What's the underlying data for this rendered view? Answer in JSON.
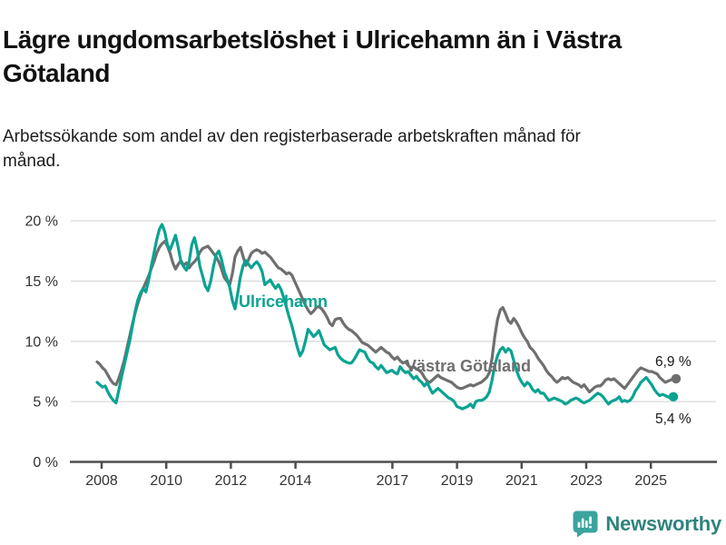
{
  "header": {
    "title": "Lägre ungdomsarbetslöshet i Ulricehamn än i Västra Götaland",
    "subtitle": "Arbetssökande som andel av den registerbaserade arbetskraften månad för månad."
  },
  "chart_data": {
    "type": "line",
    "unit": "%",
    "frequency": "monthly",
    "start": "2008-01",
    "end": "2025-10",
    "grid": true,
    "legend": "inline-labels",
    "ylim": [
      0,
      20
    ],
    "y_ticks": [
      {
        "value": 0,
        "label": "0 %"
      },
      {
        "value": 5,
        "label": "5 %"
      },
      {
        "value": 10,
        "label": "10 %"
      },
      {
        "value": 15,
        "label": "15 %"
      },
      {
        "value": 20,
        "label": "20 %"
      }
    ],
    "x_ticks": [
      {
        "year": 2008,
        "label": "2008"
      },
      {
        "year": 2010,
        "label": "2010"
      },
      {
        "year": 2012,
        "label": "2012"
      },
      {
        "year": 2014,
        "label": "2014"
      },
      {
        "year": 2017,
        "label": "2017"
      },
      {
        "year": 2019,
        "label": "2019"
      },
      {
        "year": 2021,
        "label": "2021"
      },
      {
        "year": 2023,
        "label": "2023"
      },
      {
        "year": 2025,
        "label": "2025"
      }
    ],
    "series": [
      {
        "name": "Västra Götaland",
        "label_text": "Västra Götaland",
        "color": "#6f6f6f",
        "end_value": 6.9,
        "end_value_label": "6,9 %",
        "values": [
          8.3,
          8.1,
          7.8,
          7.6,
          7.2,
          6.8,
          6.5,
          6.4,
          6.9,
          7.6,
          8.4,
          9.4,
          10.4,
          11.4,
          12.3,
          13.1,
          13.8,
          14.4,
          14.9,
          15.4,
          16.0,
          16.6,
          17.3,
          17.8,
          18.1,
          18.3,
          17.9,
          17.3,
          16.5,
          16.0,
          16.4,
          16.7,
          16.3,
          16.5,
          16.1,
          16.4,
          16.6,
          16.9,
          17.4,
          17.7,
          17.8,
          17.9,
          17.6,
          17.3,
          17.0,
          16.6,
          16.0,
          15.3,
          15.0,
          14.7,
          15.6,
          17.0,
          17.5,
          17.8,
          17.0,
          16.3,
          16.8,
          17.3,
          17.5,
          17.6,
          17.5,
          17.3,
          17.4,
          17.2,
          17.0,
          16.7,
          16.4,
          16.1,
          16.0,
          15.8,
          15.6,
          15.7,
          15.5,
          15.0,
          14.5,
          14.0,
          13.5,
          13.0,
          12.6,
          12.3,
          12.5,
          12.8,
          12.9,
          12.7,
          12.4,
          12.0,
          11.5,
          11.3,
          11.8,
          11.9,
          11.9,
          11.5,
          11.2,
          11.0,
          10.9,
          10.7,
          10.5,
          10.2,
          9.9,
          9.8,
          9.7,
          9.5,
          9.3,
          9.1,
          9.3,
          9.5,
          9.3,
          9.1,
          9.0,
          8.7,
          8.5,
          8.7,
          8.4,
          8.2,
          8.3,
          8.0,
          7.8,
          7.9,
          7.7,
          7.6,
          7.4,
          7.0,
          6.7,
          6.6,
          6.8,
          7.0,
          7.2,
          7.0,
          6.9,
          6.8,
          6.7,
          6.6,
          6.4,
          6.2,
          6.1,
          6.1,
          6.2,
          6.3,
          6.4,
          6.3,
          6.4,
          6.5,
          6.6,
          6.8,
          7.0,
          7.4,
          8.6,
          10.4,
          11.8,
          12.6,
          12.8,
          12.3,
          11.7,
          11.5,
          11.9,
          11.6,
          11.2,
          10.7,
          10.3,
          10.0,
          9.5,
          9.3,
          9.0,
          8.6,
          8.3,
          8.0,
          7.6,
          7.3,
          7.1,
          6.8,
          6.6,
          6.8,
          7.0,
          6.9,
          7.0,
          6.8,
          6.6,
          6.5,
          6.4,
          6.2,
          6.4,
          6.1,
          5.8,
          6.0,
          6.2,
          6.3,
          6.3,
          6.5,
          6.8,
          6.9,
          6.8,
          6.9,
          6.7,
          6.5,
          6.3,
          6.1,
          6.4,
          6.7,
          7.0,
          7.3,
          7.6,
          7.8,
          7.7,
          7.6,
          7.5,
          7.5,
          7.4,
          7.3,
          7.0,
          6.8,
          6.6,
          6.7,
          6.8,
          6.9
        ]
      },
      {
        "name": "Ulricehamn",
        "label_text": "Ulricehamn",
        "color": "#0aa392",
        "end_value": 5.4,
        "end_value_label": "5,4 %",
        "values": [
          6.6,
          6.4,
          6.2,
          6.3,
          5.8,
          5.4,
          5.1,
          4.9,
          5.9,
          7.0,
          8.0,
          9.0,
          10.0,
          11.2,
          12.4,
          13.4,
          14.0,
          14.4,
          14.1,
          15.0,
          16.2,
          17.3,
          18.4,
          19.3,
          19.7,
          19.1,
          18.0,
          17.6,
          18.2,
          18.8,
          17.8,
          16.6,
          16.2,
          15.9,
          16.6,
          18.0,
          18.6,
          17.6,
          16.2,
          15.4,
          14.6,
          14.2,
          15.0,
          16.2,
          17.2,
          17.5,
          16.8,
          15.8,
          15.2,
          14.5,
          13.4,
          12.7,
          14.0,
          15.4,
          16.3,
          16.7,
          16.4,
          16.1,
          16.4,
          16.6,
          16.3,
          15.8,
          14.7,
          14.9,
          15.1,
          14.7,
          14.4,
          14.7,
          14.3,
          13.6,
          12.8,
          12.0,
          11.3,
          10.4,
          9.5,
          8.8,
          9.2,
          10.0,
          11.0,
          10.7,
          10.4,
          10.6,
          10.9,
          10.3,
          9.7,
          9.5,
          9.3,
          9.4,
          9.5,
          8.9,
          8.6,
          8.4,
          8.3,
          8.2,
          8.2,
          8.5,
          8.9,
          9.3,
          9.2,
          9.1,
          8.6,
          8.3,
          8.2,
          7.9,
          7.7,
          8.0,
          7.7,
          7.4,
          7.5,
          7.6,
          7.4,
          7.3,
          7.9,
          7.6,
          7.4,
          7.5,
          7.2,
          6.9,
          7.1,
          6.8,
          6.6,
          6.3,
          6.6,
          6.1,
          5.7,
          5.9,
          6.1,
          5.9,
          5.7,
          5.5,
          5.3,
          5.2,
          5.0,
          4.6,
          4.5,
          4.4,
          4.5,
          4.6,
          4.8,
          4.5,
          5.0,
          5.1,
          5.1,
          5.2,
          5.4,
          5.8,
          6.8,
          8.0,
          8.8,
          9.3,
          9.5,
          9.1,
          9.4,
          9.2,
          8.4,
          7.6,
          7.0,
          6.6,
          6.3,
          6.6,
          6.4,
          6.0,
          5.8,
          6.0,
          5.7,
          5.7,
          5.4,
          5.1,
          5.2,
          5.3,
          5.2,
          5.1,
          5.0,
          4.8,
          4.9,
          5.1,
          5.2,
          5.3,
          5.2,
          5.0,
          4.9,
          5.0,
          5.1,
          5.3,
          5.5,
          5.7,
          5.6,
          5.4,
          5.1,
          4.8,
          5.0,
          5.1,
          5.2,
          5.4,
          5.0,
          5.1,
          5.0,
          5.1,
          5.4,
          5.9,
          6.2,
          6.6,
          6.8,
          7.0,
          6.7,
          6.4,
          6.0,
          5.7,
          5.5,
          5.6,
          5.5,
          5.4,
          5.3,
          5.4
        ]
      }
    ]
  },
  "footer": {
    "brand": "Newsworthy"
  }
}
